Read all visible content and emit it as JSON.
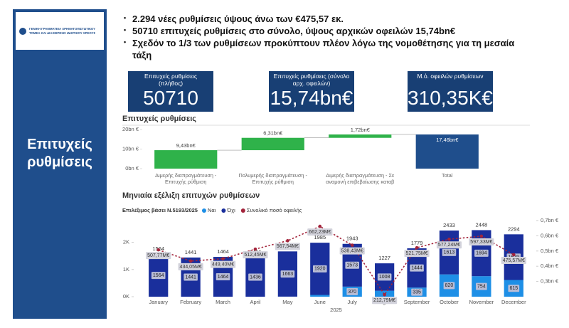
{
  "sidebar": {
    "logo_text": "ΓΕΝΙΚΗ ΓΡΑΜΜΑΤΕΙΑ ΧΡΗΜΑΤΟΠΙΣΤΩΤΙΚΟΥ ΤΟΜΕΑ ΚΑΙ ΔΙΑΧΕΙΡΙΣΗΣ ΙΔΙΩΤΙΚΟΥ ΧΡΕΟΥΣ",
    "title": "Επιτυχείς ρυθμίσεις"
  },
  "bullets": [
    "2.294 νέες ρυθμίσεις ύψους άνω των €475,57 εκ.",
    "50710 επιτυχείς ρυθμίσεις στο σύνολο, ύψους αρχικών οφειλών  15,74bn€",
    "Σχεδόν το 1/3 των ρυθμίσεων προκύπτουν πλέον λόγω της νομοθέτησης για τη μεσαία τάξη"
  ],
  "kpis": [
    {
      "label": "Επιτυχείς ρυθμίσεις (πλήθος)",
      "value": "50710"
    },
    {
      "label": "Επιτυχείς ρυθμίσεις (σύνολο αρχ. οφειλών)",
      "value": "15,74bn€"
    },
    {
      "label": "Μ.ό. οφειλών ρυθμίσεων",
      "value": "310,35K€"
    }
  ],
  "chart_data": [
    {
      "type": "waterfall",
      "title": "Επιτυχείς ρυθμίσεις",
      "categories": [
        "Διμερής διαπραγμάτευση - Επιτυχής ρύθμιση",
        "Πολυμερής διαπραγμάτευση - Επιτυχής ρύθμιση",
        "Διμερής διαπραγμάτευση - Σε αναμονή επιβεβαίωσης καταβ",
        "Total"
      ],
      "values": [
        9.43,
        6.31,
        1.72,
        17.46
      ],
      "value_labels": [
        "9,43bn€",
        "6,31bn€",
        "1,72bn€",
        "17,46bn€"
      ],
      "is_total": [
        false,
        false,
        false,
        true
      ],
      "color": "#2fb24a",
      "total_color": "#1f4e8c",
      "ylim": [
        0,
        20
      ],
      "yticks": [
        {
          "value": 0,
          "label": "0bn €"
        },
        {
          "value": 10,
          "label": "10bn €"
        },
        {
          "value": 20,
          "label": "20bn €"
        }
      ]
    },
    {
      "type": "combo",
      "title": "Μηνιαία εξέλιξη επιτυχών ρυθμίσεων",
      "legend_title": "Επιλέξιμος βάσει Ν.5193/2025",
      "x_label": "2025",
      "categories": [
        "January",
        "February",
        "March",
        "April",
        "May",
        "June",
        "July",
        "August",
        "September",
        "October",
        "November",
        "December"
      ],
      "series": [
        {
          "name": "Ναι",
          "color": "#1e8fe6",
          "values": [
            0,
            0,
            0,
            0,
            3,
            65,
            370,
            219,
            335,
            820,
            754,
            615
          ]
        },
        {
          "name": "Όχι",
          "color": "#1a2f9c",
          "values": [
            1564,
            1441,
            1464,
            1436,
            1663,
            1920,
            1573,
            1008,
            1444,
            1613,
            1694,
            1679
          ]
        },
        {
          "name": "Συνολικό ποσό οφειλής",
          "color": "#a3243b",
          "axis": "y2",
          "values": [
            0.50777,
            0.43405,
            0.4494,
            0.51245,
            0.56754,
            0.66223,
            0.53843,
            0.21279,
            0.52175,
            0.57724,
            0.59733,
            0.47557
          ],
          "value_labels": [
            "507,77M€",
            "434,05M€",
            "449,40M€",
            "512,45M€",
            "567,54M€",
            "662,23M€",
            "538,43M€",
            "212,79M€",
            "521,75M€",
            "577,24M€",
            "597,33M€",
            "475,57M€"
          ]
        }
      ],
      "totals": [
        1564,
        1441,
        1464,
        1436,
        1666,
        1985,
        1943,
        1227,
        1779,
        2433,
        2448,
        2294
      ],
      "ylim": [
        0,
        2800
      ],
      "yticks": [
        {
          "value": 0,
          "label": "0K"
        },
        {
          "value": 1000,
          "label": "1K"
        },
        {
          "value": 2000,
          "label": "2K"
        }
      ],
      "y2lim": [
        0.2,
        0.7
      ],
      "y2ticks": [
        {
          "value": 0.3,
          "label": "0,3bn €"
        },
        {
          "value": 0.4,
          "label": "0,4bn €"
        },
        {
          "value": 0.5,
          "label": "0,5bn €"
        },
        {
          "value": 0.6,
          "label": "0,6bn €"
        },
        {
          "value": 0.7,
          "label": "0,7bn €"
        }
      ]
    }
  ]
}
